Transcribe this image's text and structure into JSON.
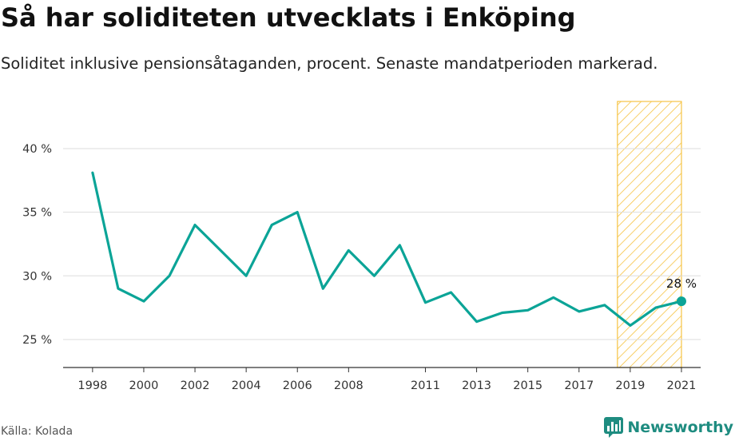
{
  "title": "Så har soliditeten utvecklats i Enköping",
  "subtitle": "Soliditet inklusive pensionsåtaganden, procent. Senaste mandatperioden markerad.",
  "source": "Källa: Kolada",
  "brand": {
    "name": "Newsworthy",
    "icon": "newsworthy-logo-icon",
    "color": "#1e8c80"
  },
  "chart_data": {
    "type": "line",
    "x": [
      1998,
      1999,
      2000,
      2001,
      2002,
      2003,
      2004,
      2005,
      2006,
      2007,
      2008,
      2009,
      2010,
      2011,
      2012,
      2013,
      2014,
      2015,
      2016,
      2017,
      2018,
      2019,
      2020,
      2021
    ],
    "series": [
      {
        "values": [
          38.1,
          29.0,
          28.0,
          30.0,
          34.0,
          32.0,
          30.0,
          34.0,
          35.0,
          29.0,
          32.0,
          30.0,
          32.4,
          27.9,
          28.7,
          26.4,
          27.1,
          27.3,
          28.3,
          27.2,
          27.7,
          26.1,
          27.5,
          28.0
        ]
      }
    ],
    "x_ticks": [
      1998,
      2000,
      2002,
      2004,
      2006,
      2008,
      2011,
      2013,
      2015,
      2017,
      2019,
      2021
    ],
    "y_ticks": [
      25,
      30,
      35,
      40
    ],
    "y_tick_suffix": " %",
    "ylim": [
      22.8,
      43.7
    ],
    "xlim": [
      1996.85,
      2021.75
    ],
    "grid": "horizontal",
    "line_color": "#0ba497",
    "highlight": {
      "from": 2018.5,
      "to": 2021,
      "color": "#f6c343",
      "description": "Senaste mandatperioden"
    },
    "end_label": "28 %"
  }
}
